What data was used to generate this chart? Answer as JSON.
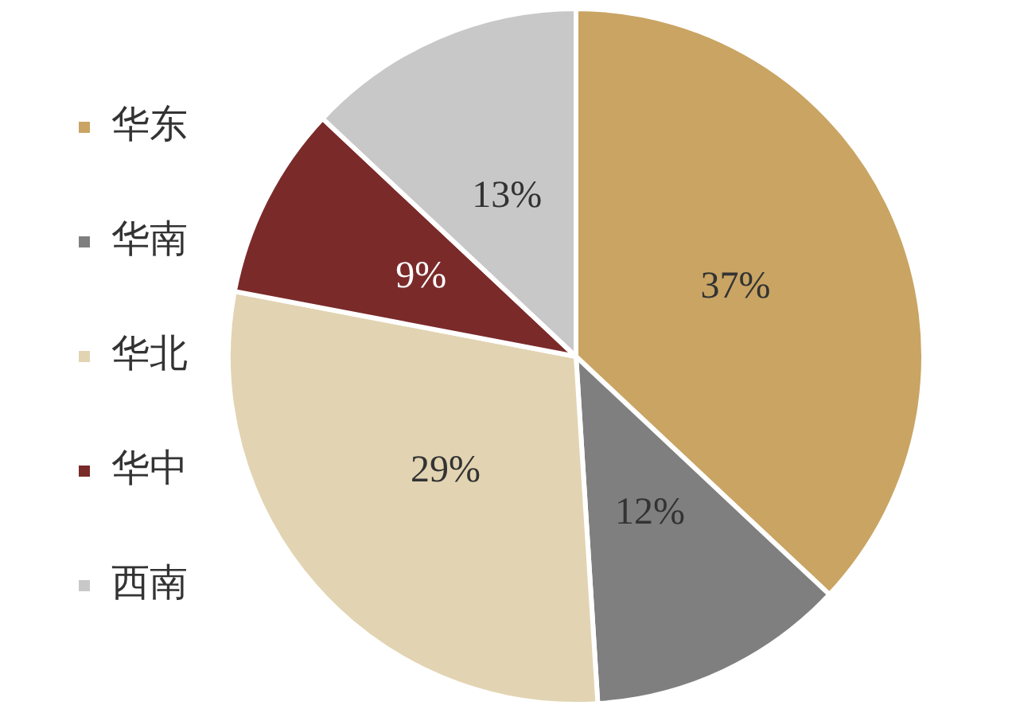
{
  "chart_data": {
    "type": "pie",
    "categories": [
      "华东",
      "华南",
      "华北",
      "华中",
      "西南"
    ],
    "values": [
      37,
      12,
      29,
      9,
      13
    ],
    "colors": [
      "#c9a463",
      "#7f7f7f",
      "#e2d4b2",
      "#7b2a2a",
      "#c8c8c8"
    ],
    "value_labels": [
      "37%",
      "12%",
      "29%",
      "9%",
      "13%"
    ],
    "legend": "left"
  }
}
